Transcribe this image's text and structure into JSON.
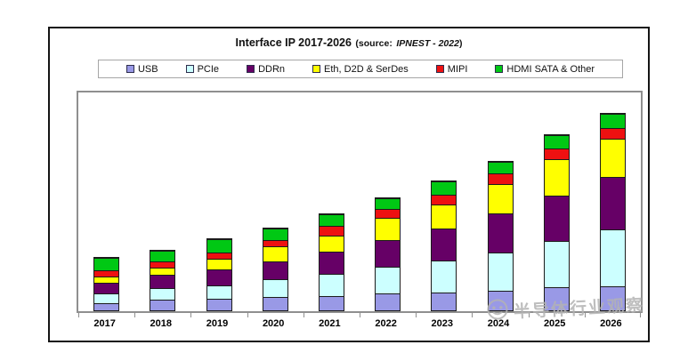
{
  "title": {
    "main": "Interface IP  2017-2026",
    "source_prefix": "(source:",
    "source_value": "IPNEST - 2022",
    "source_close": ")"
  },
  "colors": {
    "usb": "#9999E6",
    "pcie": "#CCFFFF",
    "ddrn": "#660066",
    "eth_d2d_serdes": "#FFFF00",
    "mipi": "#EE1111",
    "hdmi_sata_other": "#00C814",
    "plot_border": "#8f8f8f",
    "outer_border": "#141414",
    "watermark_gray": "#b3b3b3"
  },
  "chart_data": {
    "type": "bar",
    "stacked": true,
    "title": "Interface IP 2017-2026 (source: IPNEST - 2022)",
    "categories": [
      "2017",
      "2018",
      "2019",
      "2020",
      "2021",
      "2022",
      "2023",
      "2024",
      "2025",
      "2026"
    ],
    "series": [
      {
        "name": "USB",
        "color": "#9999E6",
        "values": [
          8,
          12,
          13,
          15,
          16,
          19,
          20,
          22,
          26,
          27
        ]
      },
      {
        "name": "PCIe",
        "color": "#CCFFFF",
        "values": [
          11,
          13,
          15,
          20,
          25,
          30,
          37,
          44,
          53,
          65
        ]
      },
      {
        "name": "DDRn",
        "color": "#660066",
        "values": [
          12,
          15,
          18,
          20,
          25,
          30,
          37,
          45,
          52,
          60
        ]
      },
      {
        "name": "Eth, D2D & SerDes",
        "color": "#FFFF00",
        "values": [
          7,
          8,
          12,
          17,
          18,
          25,
          27,
          34,
          42,
          44
        ]
      },
      {
        "name": "MIPI",
        "color": "#EE1111",
        "values": [
          7,
          7,
          7,
          7,
          11,
          10,
          11,
          12,
          12,
          12
        ]
      },
      {
        "name": "HDMI SATA & Other",
        "color": "#00C814",
        "values": [
          14,
          12,
          15,
          13,
          13,
          12,
          15,
          13,
          15,
          16
        ]
      }
    ],
    "xlabel": "",
    "ylabel": "",
    "ylim": [
      0,
      250
    ],
    "value_axis_labels_shown": false,
    "grid": false,
    "legend_position": "top"
  },
  "watermark": {
    "text": "半导体行业观察"
  }
}
